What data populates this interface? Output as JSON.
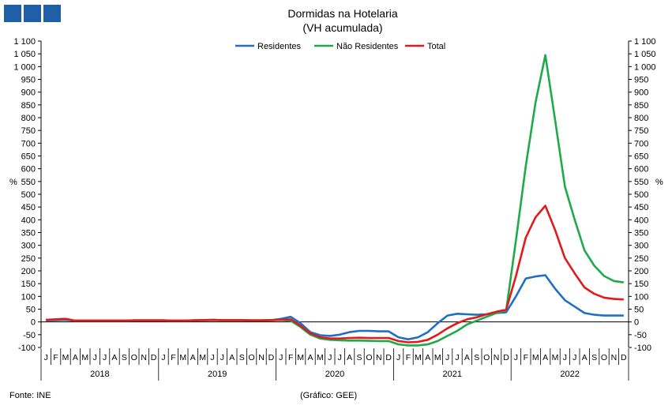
{
  "logo": {
    "name": "gee-logo",
    "color": "#1f5fa8"
  },
  "chart_data": {
    "type": "line",
    "title": "Dormidas na Hotelaria",
    "subtitle": "(VH acumulada)",
    "ylabel_left": "%",
    "ylabel_right": "%",
    "ylim": [
      -100,
      1100
    ],
    "yticks": [
      -100,
      -50,
      0,
      50,
      100,
      150,
      200,
      250,
      300,
      350,
      400,
      450,
      500,
      550,
      600,
      650,
      700,
      750,
      800,
      850,
      900,
      950,
      1000,
      1050,
      1100
    ],
    "ytick_labels": [
      "-100",
      "-50",
      "0",
      "50",
      "100",
      "150",
      "200",
      "250",
      "300",
      "350",
      "400",
      "450",
      "500",
      "550",
      "600",
      "650",
      "700",
      "750",
      "800",
      "850",
      "900",
      "950",
      "1 000",
      "1 050",
      "1 100"
    ],
    "month_labels": [
      "J",
      "F",
      "M",
      "A",
      "M",
      "J",
      "J",
      "A",
      "S",
      "O",
      "N",
      "D"
    ],
    "years": [
      "2018",
      "2019",
      "2020",
      "2021",
      "2022"
    ],
    "legend_position": "top-center",
    "grid": false,
    "series": [
      {
        "name": "Residentes",
        "color": "#1f6fc5",
        "values": [
          6,
          7,
          8,
          5,
          5,
          5,
          5,
          5,
          5,
          6,
          6,
          6,
          6,
          5,
          5,
          6,
          7,
          8,
          7,
          7,
          7,
          6,
          6,
          7,
          12,
          20,
          -5,
          -40,
          -52,
          -55,
          -50,
          -40,
          -35,
          -35,
          -37,
          -37,
          -60,
          -68,
          -60,
          -40,
          -5,
          25,
          32,
          30,
          28,
          30,
          35,
          38,
          100,
          170,
          178,
          183,
          130,
          85,
          60,
          35,
          28,
          25,
          25,
          25
        ]
      },
      {
        "name": "Não Residentes",
        "color": "#1faa4a",
        "values": [
          8,
          10,
          12,
          5,
          5,
          5,
          5,
          5,
          5,
          6,
          6,
          6,
          6,
          5,
          5,
          6,
          7,
          7,
          7,
          7,
          7,
          6,
          6,
          7,
          8,
          5,
          -20,
          -50,
          -65,
          -70,
          -72,
          -73,
          -73,
          -74,
          -75,
          -75,
          -88,
          -92,
          -92,
          -88,
          -75,
          -55,
          -35,
          -10,
          5,
          20,
          35,
          45,
          320,
          610,
          860,
          1045,
          790,
          530,
          400,
          280,
          220,
          180,
          160,
          155
        ]
      },
      {
        "name": "Total",
        "color": "#e01b1b",
        "values": [
          8,
          10,
          12,
          5,
          5,
          5,
          5,
          5,
          5,
          6,
          6,
          6,
          6,
          5,
          5,
          6,
          7,
          8,
          7,
          7,
          7,
          6,
          6,
          7,
          8,
          10,
          -15,
          -45,
          -60,
          -65,
          -65,
          -63,
          -62,
          -63,
          -63,
          -63,
          -75,
          -80,
          -78,
          -70,
          -50,
          -25,
          -5,
          10,
          18,
          30,
          40,
          48,
          180,
          330,
          410,
          455,
          360,
          250,
          190,
          135,
          110,
          95,
          90,
          88
        ]
      }
    ]
  },
  "footer": {
    "source": "Fonte: INE",
    "credit": "(Gráfico: GEE)"
  }
}
